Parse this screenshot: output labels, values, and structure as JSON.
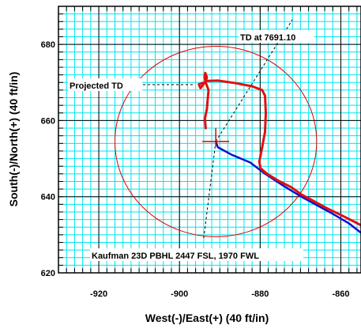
{
  "chart_data": {
    "type": "line",
    "xlabel": "West(-)/East(+) (40 ft/in)",
    "ylabel": "South(-)/North(+) (40 ft/in)",
    "xlim": [
      -930,
      -855
    ],
    "ylim": [
      620,
      690
    ],
    "x_ticks": [
      -920,
      -900,
      -880,
      -860
    ],
    "y_ticks": [
      620,
      640,
      660,
      680
    ],
    "grid": true,
    "colors": {
      "grid": "#00e5ee",
      "actual_path": "#e01010",
      "planned_path": "#1010d0",
      "circle": "#dd0000",
      "crosshair": "#dd0000",
      "dashed": "#000000"
    },
    "series": [
      {
        "points": [
          [
            -891,
            654.5
          ],
          [
            -890.5,
            653
          ],
          [
            -887,
            651
          ],
          [
            -882.5,
            649
          ],
          [
            -879,
            646.2
          ],
          [
            -874,
            642.7
          ],
          [
            -869.8,
            640
          ],
          [
            -866,
            637.8
          ],
          [
            -862,
            635.5
          ],
          [
            -858,
            633
          ],
          [
            -855,
            630.5
          ]
        ]
      },
      {
        "points": [
          [
            -893.5,
            658
          ],
          [
            -893.7,
            660.5
          ],
          [
            -893.2,
            663
          ],
          [
            -893,
            665.5
          ],
          [
            -892.8,
            668
          ],
          [
            -893.5,
            670
          ],
          [
            -893.8,
            671.5
          ],
          [
            -893.6,
            672.5
          ],
          [
            -893.2,
            671.3
          ],
          [
            -893.6,
            670.1
          ],
          [
            -895.2,
            669.5
          ],
          [
            -894.8,
            668.5
          ],
          [
            -893.5,
            670.4
          ],
          [
            -890.5,
            670.5
          ],
          [
            -886,
            669.8
          ],
          [
            -882,
            669
          ],
          [
            -879.5,
            668
          ],
          [
            -878.8,
            666.5
          ],
          [
            -878.6,
            662
          ],
          [
            -878.8,
            657
          ],
          [
            -879.6,
            652.5
          ],
          [
            -880.2,
            649.2
          ],
          [
            -879.9,
            647.5
          ],
          [
            -878.3,
            646
          ],
          [
            -875.3,
            644.1
          ],
          [
            -872.3,
            642.5
          ],
          [
            -869.8,
            640.6
          ],
          [
            -867,
            639
          ],
          [
            -863.5,
            637
          ],
          [
            -860,
            635.2
          ],
          [
            -856.8,
            633.5
          ],
          [
            -855,
            632.5
          ]
        ]
      }
    ],
    "target_circle": {
      "center": [
        -891,
        654.5
      ],
      "radius": 25
    },
    "surface_marker": [
      -891,
      654.5
    ],
    "projection_lines": [
      [
        [
          -891,
          654.5
        ],
        [
          -872,
          686.5
        ]
      ],
      [
        [
          -891,
          654.5
        ],
        [
          -894,
          629
        ]
      ]
    ],
    "annotations": [
      {
        "text": "TD at 7691.10"
      },
      {
        "text": "Projected TD"
      },
      {
        "text": "Kaufman 23D PBHL 2447 FSL, 1970 FWL"
      }
    ]
  }
}
